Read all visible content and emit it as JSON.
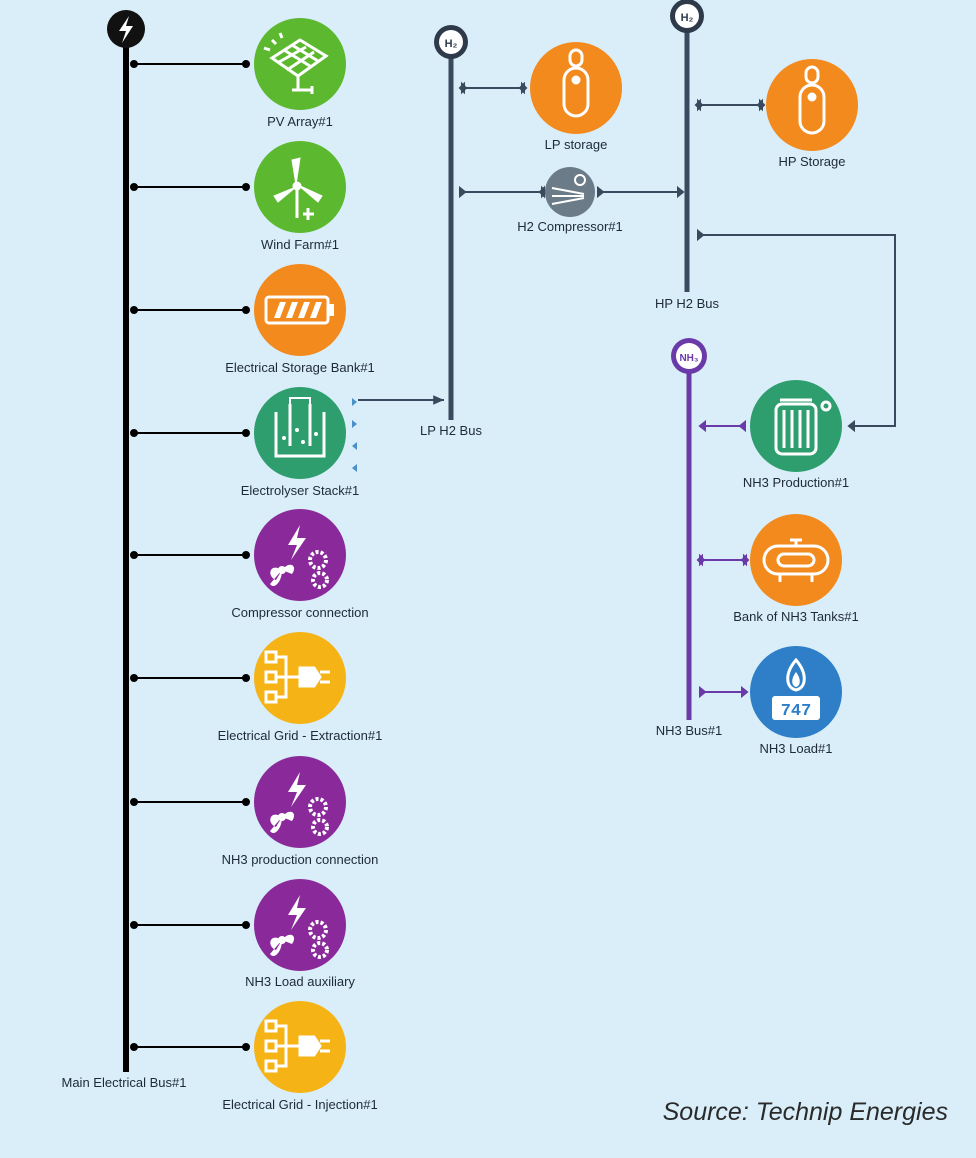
{
  "source": "Source: Technip Energies",
  "buses": {
    "main": "Main Electrical Bus#1",
    "lp_h2": "LP H2 Bus",
    "hp_h2": "HP H2 Bus",
    "nh3": "NH3 Bus#1"
  },
  "bus_badges": {
    "main": "⚡",
    "lp_h2": "H₂",
    "hp_h2": "H₂",
    "nh3": "NH₃"
  },
  "components": {
    "pv": "PV Array#1",
    "wind": "Wind Farm#1",
    "battery": "Electrical Storage Bank#1",
    "electrolyser": "Electrolyser Stack#1",
    "compressor_conn": "Compressor connection",
    "grid_extraction": "Electrical Grid - Extraction#1",
    "nh3_prod_conn": "NH3 production connection",
    "nh3_load_aux": "NH3 Load auxiliary",
    "grid_injection": "Electrical Grid - Injection#1",
    "lp_storage": "LP storage",
    "h2_compressor": "H2 Compressor#1",
    "hp_storage": "HP Storage",
    "nh3_production": "NH3 Production#1",
    "nh3_tanks": "Bank of NH3 Tanks#1",
    "nh3_load": "NH3 Load#1"
  },
  "meter_digits": "747",
  "colors": {
    "green": "#5cb82e",
    "teal": "#2e9e6e",
    "orange": "#f28a1e",
    "purple": "#8a2a9a",
    "yellow": "#f5b316",
    "blue": "#2e7fc8",
    "gray": "#6b7c88",
    "h2_bus": "#3a4a5e",
    "nh3_bus": "#6a3aa8",
    "main_bus": "#000000"
  }
}
